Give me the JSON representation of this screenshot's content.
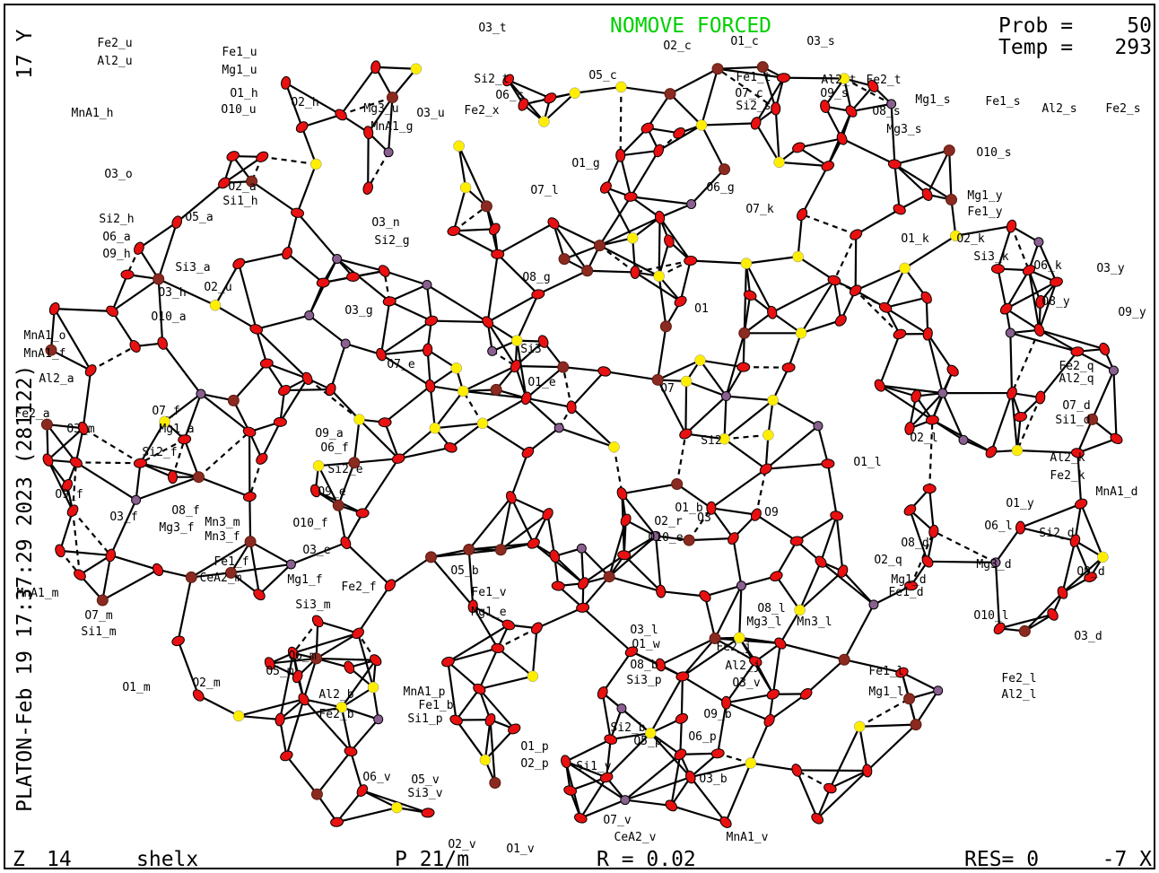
{
  "header": {
    "status": "NOMOVE FORCED",
    "prob_label": "Prob =",
    "prob": "50",
    "temp_label": "Temp =",
    "temp": "293",
    "axis_y": "17 Y"
  },
  "side": {
    "stamp": "PLATON-Feb 19 17:37:29 2023 (281122)"
  },
  "footer": {
    "z_label": "Z",
    "z": "14",
    "program": "shelx",
    "space_group": "P 21/m",
    "r_label": "R = 0.02",
    "res": "RES= 0",
    "axis_x": "-7 X"
  },
  "labels": [
    "Fe2_u",
    "Al2_u",
    "Fe1_u",
    "Mg1_u",
    "O1_h",
    "O10_u",
    "MnA1_h",
    "O2_h",
    "Mg3_u",
    "O3_u",
    "MnA1_g",
    "O3_t",
    "O2_c",
    "O1_c",
    "O3_s",
    "O5_c",
    "Si2_t",
    "O6_c",
    "Fe2_x",
    "Fe1_t",
    "O7_c",
    "Si2_s",
    "Al2_t",
    "Fe2_t",
    "O9_s",
    "Mg1_s",
    "Fe1_s",
    "Al2_s",
    "Fe2_s",
    "O8_s",
    "Mg3_s",
    "O10_s",
    "O3_o",
    "O2_a",
    "Si1_h",
    "O1_g",
    "O7_l",
    "O6_g",
    "O7_k",
    "Mg1_y",
    "Fe1_y",
    "Si2_h",
    "O6_a",
    "O5_a",
    "O3_n",
    "Si2_g",
    "O9_h",
    "Si3_a",
    "O2_u",
    "O1_k",
    "O2_k",
    "Si3_k",
    "O6_k",
    "O3_y",
    "O3_h",
    "O8_g",
    "O1",
    "O8_y",
    "O9_y",
    "O3_g",
    "O10_a",
    "MnA1_o",
    "MnA1_f",
    "Si3",
    "O7",
    "Al2_a",
    "O7_e",
    "O1_e",
    "Fe2_q",
    "Al2_q",
    "Fe2_a",
    "O3_m",
    "O7_f",
    "Mg1_a",
    "Si2",
    "O1_l",
    "O7_d",
    "Si1_d",
    "O2_l",
    "O9_a",
    "O6_f",
    "Si2_e",
    "Si2_f",
    "Al2_k",
    "Fe2_k",
    "MnA1_d",
    "O9_e",
    "O1_b",
    "O9",
    "O1_y",
    "O9_f",
    "O3_f",
    "O8_f",
    "Mn3_m",
    "Mg3_f",
    "Mn3_f",
    "O10_f",
    "O2_r",
    "O3",
    "O10_e",
    "O6_l",
    "Si2_d",
    "O8_d",
    "Mg3_d",
    "O9_d",
    "Fe1_f",
    "CeA2_m",
    "O3_e",
    "Mg1_f",
    "Fe2_f",
    "O5_b",
    "O2_q",
    "Mg1_d",
    "Fe1_d",
    "Fe1_v",
    "Mg1_e",
    "MnA1_m",
    "Si3_m",
    "O8_l",
    "Mg3_l",
    "Mn3_l",
    "O10_l",
    "O3_d",
    "O7_m",
    "Si1_m",
    "O3_l",
    "O1_w",
    "Fe2_j",
    "Al2_j",
    "O6_m",
    "O5_m",
    "MnA1_p",
    "Fe1_b",
    "Si1_p",
    "O8_b",
    "Si3_p",
    "O3_v",
    "Fe1_l",
    "Mg1_l",
    "Fe2_l",
    "Al2_l",
    "O1_m",
    "O2_m",
    "Al2_b",
    "Fe2_b",
    "O9_b",
    "Si2_b",
    "O5_p",
    "O6_p",
    "O1_p",
    "O2_p",
    "Si1_v",
    "O6_v",
    "O5_v",
    "Si3_v",
    "O3_b",
    "O7_v",
    "CeA2_v",
    "MnA1_v",
    "O2_v",
    "O1_v"
  ]
}
